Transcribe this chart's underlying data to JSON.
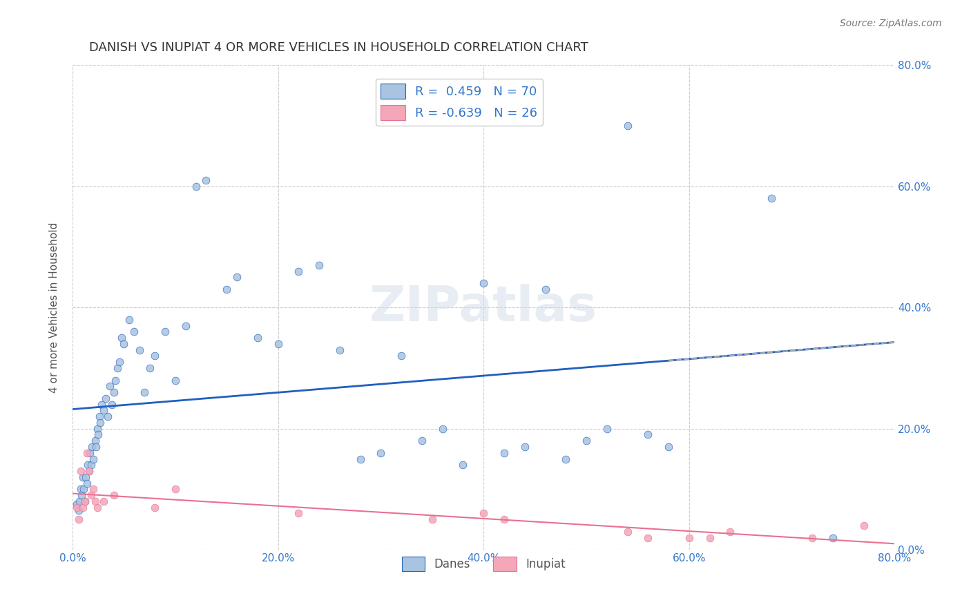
{
  "title": "DANISH VS INUPIAT 4 OR MORE VEHICLES IN HOUSEHOLD CORRELATION CHART",
  "source": "Source: ZipAtlas.com",
  "ylabel": "4 or more Vehicles in Household",
  "xlim": [
    0.0,
    0.8
  ],
  "ylim": [
    0.0,
    0.8
  ],
  "xtick_labels": [
    "0.0%",
    "20.0%",
    "40.0%",
    "60.0%",
    "80.0%"
  ],
  "xtick_vals": [
    0.0,
    0.2,
    0.4,
    0.6,
    0.8
  ],
  "ytick_labels": [
    "0.0%",
    "20.0%",
    "40.0%",
    "60.0%",
    "80.0%"
  ],
  "ytick_vals": [
    0.0,
    0.2,
    0.4,
    0.6,
    0.8
  ],
  "danes_r": 0.459,
  "danes_n": 70,
  "inupiat_r": -0.639,
  "inupiat_n": 26,
  "danes_color": "#a8c4e0",
  "inupiat_color": "#f4a7b9",
  "danes_line_color": "#2060c0",
  "inupiat_line_color": "#e87090",
  "danes_x": [
    0.004,
    0.006,
    0.007,
    0.008,
    0.009,
    0.01,
    0.011,
    0.012,
    0.013,
    0.014,
    0.015,
    0.016,
    0.017,
    0.018,
    0.019,
    0.02,
    0.022,
    0.023,
    0.024,
    0.025,
    0.026,
    0.027,
    0.028,
    0.03,
    0.032,
    0.034,
    0.036,
    0.038,
    0.04,
    0.042,
    0.044,
    0.046,
    0.048,
    0.05,
    0.055,
    0.06,
    0.065,
    0.07,
    0.075,
    0.08,
    0.09,
    0.1,
    0.11,
    0.12,
    0.13,
    0.15,
    0.16,
    0.18,
    0.2,
    0.22,
    0.24,
    0.26,
    0.28,
    0.3,
    0.32,
    0.34,
    0.36,
    0.38,
    0.4,
    0.42,
    0.44,
    0.46,
    0.48,
    0.5,
    0.52,
    0.54,
    0.56,
    0.58,
    0.68,
    0.74
  ],
  "danes_y": [
    0.075,
    0.065,
    0.08,
    0.1,
    0.09,
    0.12,
    0.1,
    0.08,
    0.12,
    0.11,
    0.14,
    0.13,
    0.16,
    0.14,
    0.17,
    0.15,
    0.18,
    0.17,
    0.2,
    0.19,
    0.22,
    0.21,
    0.24,
    0.23,
    0.25,
    0.22,
    0.27,
    0.24,
    0.26,
    0.28,
    0.3,
    0.31,
    0.35,
    0.34,
    0.38,
    0.36,
    0.33,
    0.26,
    0.3,
    0.32,
    0.36,
    0.28,
    0.37,
    0.6,
    0.61,
    0.43,
    0.45,
    0.35,
    0.34,
    0.46,
    0.47,
    0.33,
    0.15,
    0.16,
    0.32,
    0.18,
    0.2,
    0.14,
    0.44,
    0.16,
    0.17,
    0.43,
    0.15,
    0.18,
    0.2,
    0.7,
    0.19,
    0.17,
    0.58,
    0.02
  ],
  "inupiat_x": [
    0.004,
    0.006,
    0.008,
    0.01,
    0.012,
    0.014,
    0.016,
    0.018,
    0.02,
    0.022,
    0.024,
    0.03,
    0.04,
    0.08,
    0.1,
    0.22,
    0.35,
    0.4,
    0.42,
    0.54,
    0.56,
    0.6,
    0.62,
    0.64,
    0.72,
    0.77
  ],
  "inupiat_y": [
    0.07,
    0.05,
    0.13,
    0.07,
    0.08,
    0.16,
    0.13,
    0.09,
    0.1,
    0.08,
    0.07,
    0.08,
    0.09,
    0.07,
    0.1,
    0.06,
    0.05,
    0.06,
    0.05,
    0.03,
    0.02,
    0.02,
    0.02,
    0.03,
    0.02,
    0.04
  ],
  "watermark": "ZIPatlas",
  "background_color": "#ffffff",
  "grid_color": "#cccccc"
}
